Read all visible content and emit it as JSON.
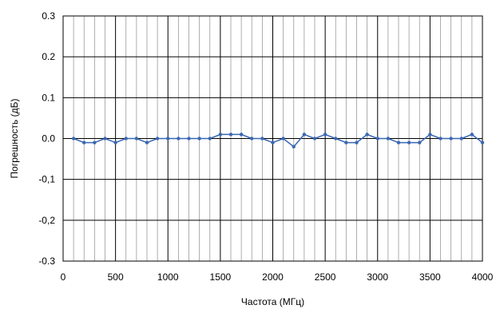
{
  "chart_data": {
    "type": "line",
    "title": "",
    "xlabel": "Частота (МГц)",
    "ylabel": "Погрешность (дБ)",
    "xlim": [
      0,
      4000
    ],
    "ylim": [
      -0.3,
      0.3
    ],
    "x_ticks": [
      0,
      500,
      1000,
      1500,
      2000,
      2500,
      3000,
      3500,
      4000
    ],
    "x_tick_labels": [
      "0",
      "500",
      "1000",
      "1500",
      "2000",
      "2500",
      "3000",
      "3500",
      "4000"
    ],
    "y_ticks": [
      0.3,
      0.2,
      0.1,
      0.0,
      -0.1,
      -0.2,
      -0.3
    ],
    "y_tick_labels": [
      "0.3",
      "0.2",
      "0.1",
      "0.0",
      "-0,1",
      "-0,2",
      "-0.3"
    ],
    "grid": true,
    "minor_grid_step": 100,
    "colors": {
      "series": "#3a68b4",
      "grid_major": "#000000",
      "grid_minor": "#9a9a9a"
    },
    "series": [
      {
        "x": [
          100,
          200,
          300,
          400,
          500,
          600,
          700,
          800,
          900,
          1000,
          1100,
          1200,
          1300,
          1400,
          1500,
          1600,
          1700,
          1800,
          1900,
          2000,
          2100,
          2200,
          2300,
          2400,
          2500,
          2600,
          2700,
          2800,
          2900,
          3000,
          3100,
          3200,
          3300,
          3400,
          3500,
          3600,
          3700,
          3800,
          3900,
          4000
        ],
        "values": [
          0.0,
          -0.01,
          -0.01,
          0.0,
          -0.01,
          0.0,
          0.0,
          -0.01,
          0.0,
          0.0,
          0.0,
          0.0,
          0.0,
          0.0,
          0.01,
          0.01,
          0.01,
          0.0,
          0.0,
          -0.01,
          0.0,
          -0.02,
          0.01,
          0.0,
          0.01,
          0.0,
          -0.01,
          -0.01,
          0.01,
          0.0,
          0.0,
          -0.01,
          -0.01,
          -0.01,
          0.01,
          0.0,
          0.0,
          0.0,
          0.01,
          -0.01
        ]
      }
    ]
  }
}
